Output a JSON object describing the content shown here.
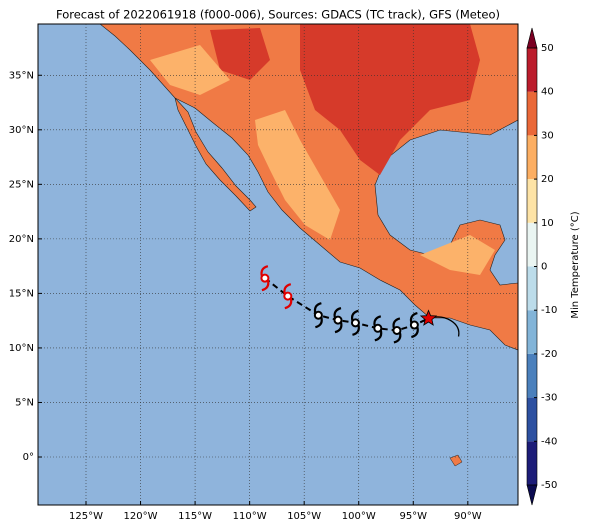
{
  "chart_data": {
    "type": "map",
    "title": "Forecast of 2022061918 (f000-006), Sources: GDACS (TC track), GFS (Meteo)",
    "xlim": [
      -129.4,
      -85.4
    ],
    "ylim": [
      -4.4,
      39.7
    ],
    "xticks": [
      {
        "value": -125,
        "label": "125°W"
      },
      {
        "value": -120,
        "label": "120°W"
      },
      {
        "value": -115,
        "label": "115°W"
      },
      {
        "value": -110,
        "label": "110°W"
      },
      {
        "value": -105,
        "label": "105°W"
      },
      {
        "value": -100,
        "label": "100°W"
      },
      {
        "value": -95,
        "label": "95°W"
      },
      {
        "value": -90,
        "label": "90°W"
      }
    ],
    "yticks": [
      {
        "value": 0,
        "label": "0°"
      },
      {
        "value": 5,
        "label": "5°N"
      },
      {
        "value": 10,
        "label": "10°N"
      },
      {
        "value": 15,
        "label": "15°N"
      },
      {
        "value": 20,
        "label": "20°N"
      },
      {
        "value": 25,
        "label": "25°N"
      },
      {
        "value": 30,
        "label": "30°N"
      },
      {
        "value": 35,
        "label": "35°N"
      }
    ],
    "grid": true,
    "colorbar": {
      "label": "Min Temperature (°C)",
      "lim": [
        -50,
        50
      ],
      "ticks": [
        -50,
        -40,
        -30,
        -20,
        -10,
        0,
        10,
        20,
        30,
        40,
        50
      ],
      "colors": [
        "#1c1c78",
        "#2d50a0",
        "#4b80bc",
        "#82b4d8",
        "#bcdcea",
        "#eaf5f2",
        "#fde3a6",
        "#fcae62",
        "#ea6838",
        "#bb1c2c"
      ],
      "under": "#0b0b50",
      "over": "#7a0022"
    },
    "track": {
      "lon": [
        -108.6,
        -106.5,
        -103.7,
        -101.9,
        -100.3,
        -98.25,
        -96.5,
        -94.9
      ],
      "lat": [
        16.4,
        14.75,
        13.0,
        12.55,
        12.3,
        11.8,
        11.6,
        12.1
      ],
      "colors": [
        "#e00000",
        "#e00000",
        "#000000",
        "#000000",
        "#000000",
        "#000000",
        "#000000",
        "#000000"
      ]
    },
    "current": {
      "lon": -93.6,
      "lat": 12.7,
      "color": "#e00000"
    }
  }
}
